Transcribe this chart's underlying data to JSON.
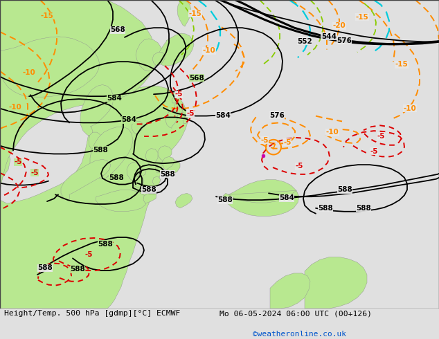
{
  "title_left": "Height/Temp. 500 hPa [gdmp][°C] ECMWF",
  "title_right": "Mo 06-05-2024 06:00 UTC (00+126)",
  "watermark": "©weatheronline.co.uk",
  "bg_land_green": "#b8e890",
  "bg_land_gray": "#c8c8c8",
  "bg_sea": "#e8e8e8",
  "bg_figure": "#e0e0e0",
  "black": "#000000",
  "orange": "#ff8c00",
  "red": "#dd0000",
  "cyan": "#00ccdd",
  "lime": "#88cc00",
  "magenta": "#cc00aa",
  "lw_black_thin": 1.3,
  "lw_black_thick": 2.2,
  "lw_orange": 1.4,
  "lw_red": 1.4,
  "lw_cyan": 1.6,
  "lw_lime": 1.3
}
